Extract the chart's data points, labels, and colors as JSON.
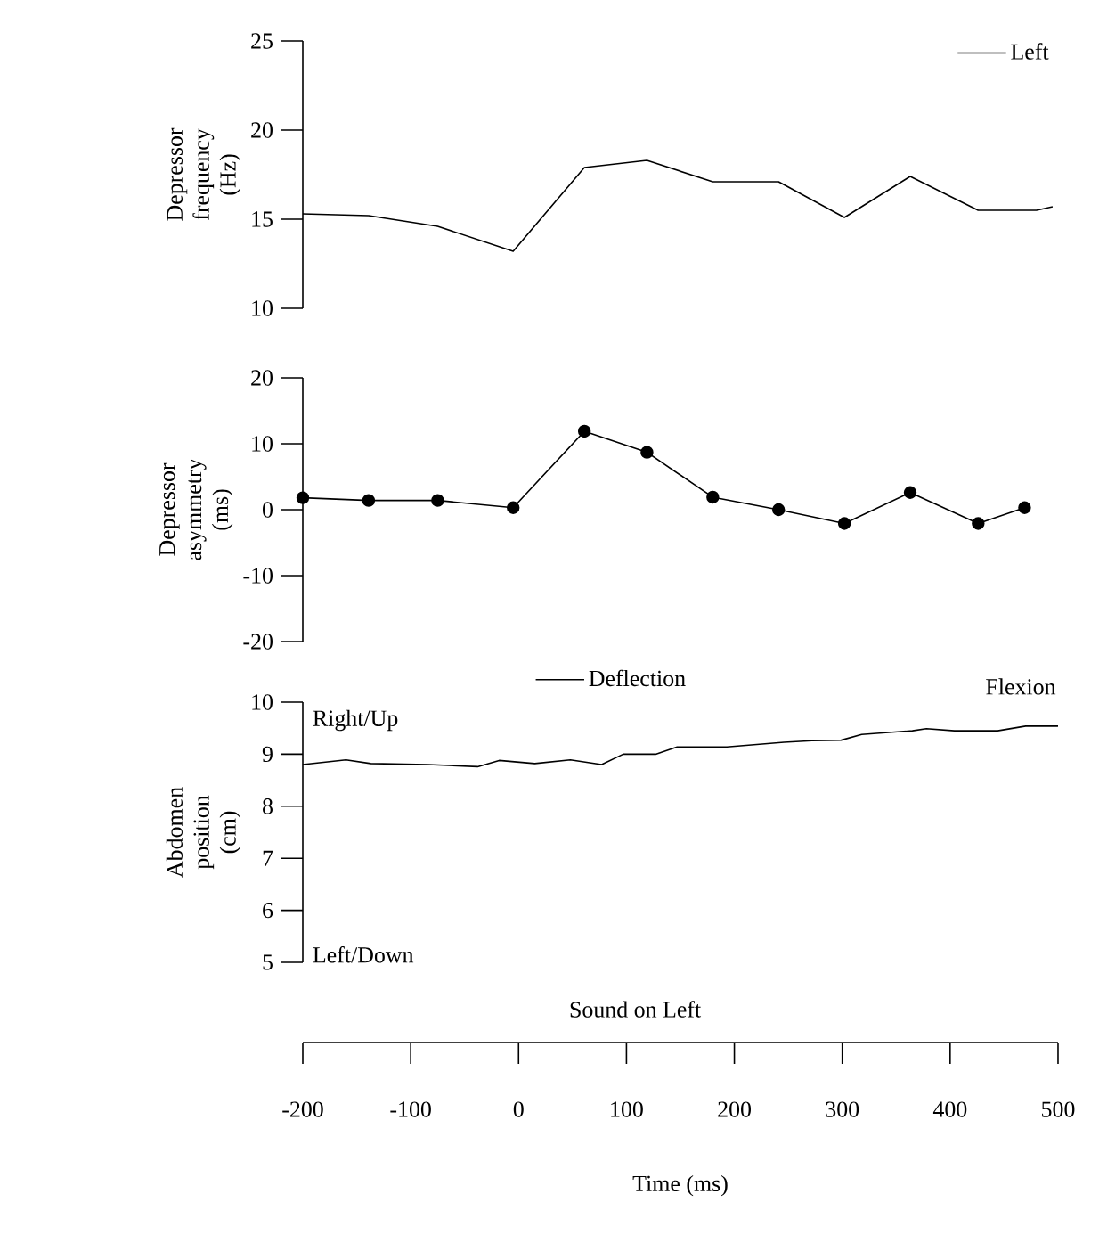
{
  "chart_data": [
    {
      "type": "line",
      "ylabel": "Depressor frequency (Hz)",
      "xlim": [
        -200,
        500
      ],
      "ylim": [
        10,
        25
      ],
      "yticks": [
        10,
        15,
        20,
        25
      ],
      "tick_labels": "y",
      "legend": "top right",
      "marker": "none",
      "line_style": "solid",
      "grid": false,
      "series": [
        {
          "name": "Left",
          "color": "#000000",
          "x": [
            -200,
            -139,
            -75,
            -5,
            61,
            119,
            180,
            241,
            302,
            363,
            426,
            480,
            495
          ],
          "values": [
            15.3,
            15.2,
            14.6,
            13.2,
            17.9,
            18.3,
            17.1,
            17.1,
            15.1,
            17.4,
            15.5,
            15.5,
            15.7
          ]
        }
      ]
    },
    {
      "type": "line",
      "ylabel": "Depressor asymmetry (ms)",
      "xlim": [
        -200,
        500
      ],
      "ylim": [
        -20,
        20
      ],
      "yticks": [
        -20,
        -10,
        0,
        10,
        20
      ],
      "tick_labels": "y",
      "marker": "circle",
      "line_style": "solid",
      "grid": false,
      "series": [
        {
          "color": "#000000",
          "x": [
            -200,
            -139,
            -75,
            -5,
            61,
            119,
            180,
            241,
            302,
            363,
            426,
            469
          ],
          "values": [
            1.8,
            1.4,
            1.4,
            0.3,
            11.9,
            8.7,
            1.9,
            0,
            -2.1,
            2.6,
            -2.1,
            0.3
          ]
        }
      ]
    },
    {
      "type": "line",
      "ylabel": "Abdomen position (cm)",
      "xlabel": "Time (ms)",
      "xlim": [
        -200,
        500
      ],
      "ylim": [
        5,
        10
      ],
      "yticks": [
        5,
        6,
        7,
        8,
        9,
        10
      ],
      "xticks": [
        -200,
        -100,
        0,
        100,
        200,
        300,
        400,
        500
      ],
      "legend": "top",
      "marker": "none",
      "line_style": "solid",
      "grid": false,
      "annotations": [
        "Right/Up",
        "Left/Down",
        "Flexion",
        "Sound on Left"
      ],
      "series": [
        {
          "name": "Deflection",
          "color": "#000000",
          "x": [
            -200,
            -160,
            -137,
            -84,
            -38,
            -18,
            15,
            48,
            77,
            97,
            127,
            147,
            193,
            246,
            272,
            299,
            318,
            365,
            378,
            404,
            444,
            470,
            500
          ],
          "values": [
            8.8,
            8.89,
            8.82,
            8.8,
            8.76,
            8.88,
            8.82,
            8.89,
            8.8,
            9.0,
            9.0,
            9.14,
            9.14,
            9.23,
            9.26,
            9.27,
            9.38,
            9.45,
            9.49,
            9.45,
            9.45,
            9.54,
            9.54
          ]
        }
      ]
    }
  ]
}
